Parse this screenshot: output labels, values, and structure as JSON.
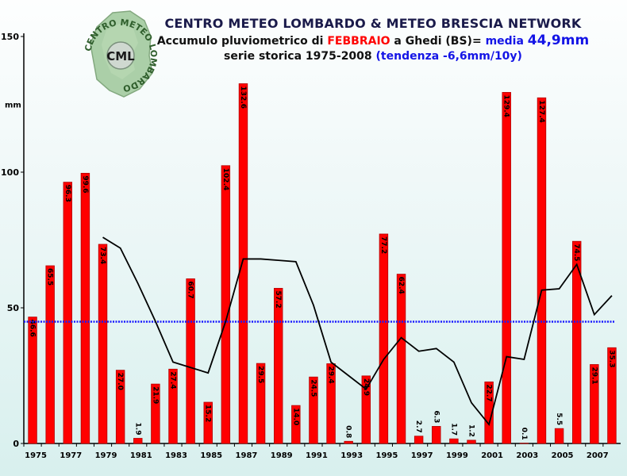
{
  "title": {
    "line1": "CENTRO METEO LOMBARDO & METEO BRESCIA NETWORK",
    "line2_prefix": "Accumulo pluviometrico di ",
    "line2_month": "FEBBRAIO",
    "line2_mid": " a Ghedi (BS)= ",
    "line2_media_label": "media ",
    "line2_media_value": "44,9mm",
    "line3_prefix": "serie storica 1975-2008 ",
    "line3_trend": "(tendenza -6,6mm/10y)"
  },
  "logo": {
    "text": "CML",
    "ring_text": "CENTRO METEO LOMBARDO"
  },
  "colors": {
    "bar": "#ff0000",
    "bar_shade": "#b30000",
    "mean_line": "#1a1aff",
    "moving_avg": "#000000",
    "axis": "#000000"
  },
  "chart_data": {
    "type": "bar",
    "title": "Accumulo pluviometrico di FEBBRAIO a Ghedi (BS)",
    "ylabel": "mm",
    "ylim": [
      0,
      150
    ],
    "yticks": [
      "0",
      "50",
      "100",
      "150"
    ],
    "grid": false,
    "categories": [
      1975,
      1976,
      1977,
      1978,
      1979,
      1980,
      1981,
      1982,
      1983,
      1984,
      1985,
      1986,
      1987,
      1988,
      1989,
      1990,
      1991,
      1992,
      1993,
      1994,
      1995,
      1996,
      1997,
      1998,
      1999,
      2000,
      2001,
      2002,
      2003,
      2004,
      2005,
      2006,
      2007,
      2008
    ],
    "xtick_labels": [
      "1975",
      "1977",
      "1979",
      "1981",
      "1983",
      "1985",
      "1987",
      "1989",
      "1991",
      "1993",
      "1995",
      "1997",
      "1999",
      "2001",
      "2003",
      "2005",
      "2007"
    ],
    "series": [
      {
        "type": "bar",
        "values": [
          46.6,
          65.5,
          96.3,
          99.6,
          73.4,
          27.0,
          1.9,
          21.9,
          27.4,
          60.7,
          15.2,
          102.4,
          132.6,
          29.5,
          57.2,
          14.0,
          24.5,
          29.4,
          0.8,
          24.9,
          77.2,
          62.4,
          2.7,
          6.3,
          1.7,
          1.2,
          22.7,
          129.4,
          0.1,
          127.4,
          5.5,
          74.5,
          29.1,
          35.3
        ],
        "labels": [
          "46.6",
          "65.5",
          "96.3",
          "99.6",
          "73.4",
          "27.0",
          "1.9",
          "21.9",
          "27.4",
          "60.7",
          "15.2",
          "102.4",
          "132.6",
          "29.5",
          "57.2",
          "14.0",
          "24.5",
          "29.4",
          "0.8",
          "24.9",
          "77.2",
          "62.4",
          "2.7",
          "6.3",
          "1.7",
          "1.2",
          "22.7",
          "129.4",
          "0.1",
          "127.4",
          "5.5",
          "74.5",
          "29.1",
          "35.3"
        ]
      },
      {
        "type": "line",
        "x": [
          1979,
          1980,
          1981,
          1982,
          1983,
          1984,
          1985,
          1986,
          1987,
          1988,
          1989,
          1990,
          1991,
          1992,
          1993,
          1994,
          1995,
          1996,
          1997,
          1998,
          1999,
          2000,
          2001,
          2002,
          2003,
          2004,
          2005,
          2006,
          2007,
          2008
        ],
        "values": [
          76,
          72,
          59,
          45,
          30,
          28,
          26,
          45,
          68,
          68,
          67.5,
          67,
          51,
          30,
          25,
          20,
          31,
          39,
          34,
          35,
          30,
          15,
          7,
          32,
          31,
          56.5,
          57,
          66,
          47.5,
          54.5
        ]
      },
      {
        "type": "hline",
        "value": 44.9
      }
    ]
  }
}
